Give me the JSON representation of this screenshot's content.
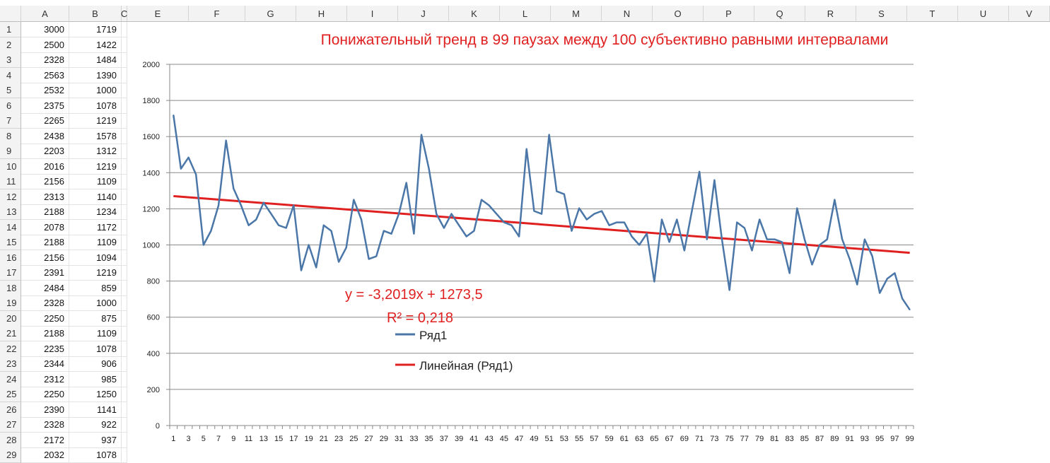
{
  "sheet": {
    "column_headers": [
      "A",
      "B",
      "C",
      "E",
      "F",
      "G",
      "H",
      "I",
      "J",
      "K",
      "L",
      "M",
      "N",
      "O",
      "P",
      "Q",
      "R",
      "S",
      "T",
      "U",
      "V"
    ],
    "rows": [
      {
        "n": "1",
        "a": "3000",
        "b": "1719"
      },
      {
        "n": "2",
        "a": "2500",
        "b": "1422"
      },
      {
        "n": "3",
        "a": "2328",
        "b": "1484"
      },
      {
        "n": "4",
        "a": "2563",
        "b": "1390"
      },
      {
        "n": "5",
        "a": "2532",
        "b": "1000"
      },
      {
        "n": "6",
        "a": "2375",
        "b": "1078"
      },
      {
        "n": "7",
        "a": "2265",
        "b": "1219"
      },
      {
        "n": "8",
        "a": "2438",
        "b": "1578"
      },
      {
        "n": "9",
        "a": "2203",
        "b": "1312"
      },
      {
        "n": "10",
        "a": "2016",
        "b": "1219"
      },
      {
        "n": "11",
        "a": "2156",
        "b": "1109"
      },
      {
        "n": "12",
        "a": "2313",
        "b": "1140"
      },
      {
        "n": "13",
        "a": "2188",
        "b": "1234"
      },
      {
        "n": "14",
        "a": "2078",
        "b": "1172"
      },
      {
        "n": "15",
        "a": "2188",
        "b": "1109"
      },
      {
        "n": "16",
        "a": "2156",
        "b": "1094"
      },
      {
        "n": "17",
        "a": "2391",
        "b": "1219"
      },
      {
        "n": "18",
        "a": "2484",
        "b": "859"
      },
      {
        "n": "19",
        "a": "2328",
        "b": "1000"
      },
      {
        "n": "20",
        "a": "2250",
        "b": "875"
      },
      {
        "n": "21",
        "a": "2188",
        "b": "1109"
      },
      {
        "n": "22",
        "a": "2235",
        "b": "1078"
      },
      {
        "n": "23",
        "a": "2344",
        "b": "906"
      },
      {
        "n": "24",
        "a": "2312",
        "b": "985"
      },
      {
        "n": "25",
        "a": "2250",
        "b": "1250"
      },
      {
        "n": "26",
        "a": "2390",
        "b": "1141"
      },
      {
        "n": "27",
        "a": "2328",
        "b": "922"
      },
      {
        "n": "28",
        "a": "2172",
        "b": "937"
      },
      {
        "n": "29",
        "a": "2032",
        "b": "1078"
      }
    ]
  },
  "chart_data": {
    "type": "line",
    "title": "Понижательный тренд в 99 паузах между 100 субъективно равными интервалами",
    "xlabel": "",
    "ylabel": "",
    "ylim": [
      0,
      2000
    ],
    "yticks": [
      0,
      200,
      400,
      600,
      800,
      1000,
      1200,
      1400,
      1600,
      1800,
      2000
    ],
    "x": [
      1,
      2,
      3,
      4,
      5,
      6,
      7,
      8,
      9,
      10,
      11,
      12,
      13,
      14,
      15,
      16,
      17,
      18,
      19,
      20,
      21,
      22,
      23,
      24,
      25,
      26,
      27,
      28,
      29,
      30,
      31,
      32,
      33,
      34,
      35,
      36,
      37,
      38,
      39,
      40,
      41,
      42,
      43,
      44,
      45,
      46,
      47,
      48,
      49,
      50,
      51,
      52,
      53,
      54,
      55,
      56,
      57,
      58,
      59,
      60,
      61,
      62,
      63,
      64,
      65,
      66,
      67,
      68,
      69,
      70,
      71,
      72,
      73,
      74,
      75,
      76,
      77,
      78,
      79,
      80,
      81,
      82,
      83,
      84,
      85,
      86,
      87,
      88,
      89,
      90,
      91,
      92,
      93,
      94,
      95,
      96,
      97,
      98,
      99
    ],
    "xtick_labels": [
      "1",
      "3",
      "5",
      "7",
      "9",
      "11",
      "13",
      "15",
      "17",
      "19",
      "21",
      "23",
      "25",
      "27",
      "29",
      "31",
      "33",
      "35",
      "37",
      "39",
      "41",
      "43",
      "45",
      "47",
      "49",
      "51",
      "53",
      "55",
      "57",
      "59",
      "61",
      "63",
      "65",
      "67",
      "69",
      "71",
      "73",
      "75",
      "77",
      "79",
      "81",
      "83",
      "85",
      "87",
      "89",
      "91",
      "93",
      "95",
      "97",
      "99"
    ],
    "series": [
      {
        "name": "Ряд1",
        "color": "#4a76a8",
        "values": [
          1719,
          1422,
          1484,
          1390,
          1000,
          1078,
          1219,
          1578,
          1312,
          1219,
          1109,
          1140,
          1234,
          1172,
          1109,
          1094,
          1219,
          859,
          1000,
          875,
          1109,
          1078,
          906,
          985,
          1250,
          1141,
          922,
          937,
          1078,
          1062,
          1172,
          1344,
          1062,
          1610,
          1422,
          1172,
          1094,
          1172,
          1109,
          1047,
          1078,
          1250,
          1219,
          1172,
          1125,
          1109,
          1047,
          1531,
          1188,
          1172,
          1610,
          1297,
          1281,
          1078,
          1203,
          1141,
          1172,
          1188,
          1109,
          1125,
          1125,
          1047,
          1000,
          1063,
          797,
          1141,
          1016,
          1141,
          969,
          1188,
          1406,
          1031,
          1359,
          1031,
          750,
          1125,
          1094,
          969,
          1141,
          1031,
          1031,
          1016,
          844,
          1203,
          1031,
          891,
          1000,
          1031,
          1250,
          1031,
          922,
          781,
          1031,
          938,
          734,
          813,
          844,
          703,
          641
        ]
      }
    ],
    "trendline": {
      "name": "Линейная (Ряд1)",
      "color": "#e02020",
      "slope": -3.2019,
      "intercept": 1273.5
    },
    "equation_label": "y = -3,2019x + 1273,5",
    "r2_label": "R² = 0,218",
    "legend": [
      "Ряд1",
      "Линейная (Ряд1)"
    ],
    "legend_position": "inside-left",
    "grid": true,
    "title_color": "#e02020"
  }
}
